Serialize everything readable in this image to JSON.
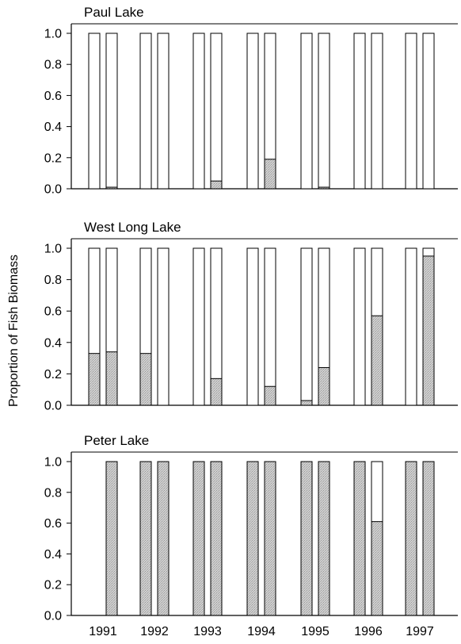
{
  "chart_data": {
    "type": "bar",
    "ylabel": "Proportion of Fish Biomass",
    "categories": [
      "1991",
      "1992",
      "1993",
      "1994",
      "1995",
      "1996",
      "1997"
    ],
    "ylim": [
      0,
      1.0
    ],
    "yticks": [
      "0.0",
      "0.2",
      "0.4",
      "0.6",
      "0.8",
      "1.0"
    ],
    "fill_colors": {
      "open": "#ffffff",
      "shaded": "#c8c8c8"
    },
    "panels": [
      {
        "title": "Paul Lake",
        "bars": [
          [
            {
              "total": 1.0,
              "shaded": 0.0
            },
            {
              "total": 1.0,
              "shaded": 0.01
            }
          ],
          [
            {
              "total": 1.0,
              "shaded": 0.0
            },
            {
              "total": 1.0,
              "shaded": 0.0
            }
          ],
          [
            {
              "total": 1.0,
              "shaded": 0.0
            },
            {
              "total": 1.0,
              "shaded": 0.05
            }
          ],
          [
            {
              "total": 1.0,
              "shaded": 0.0
            },
            {
              "total": 1.0,
              "shaded": 0.19
            }
          ],
          [
            {
              "total": 1.0,
              "shaded": 0.0
            },
            {
              "total": 1.0,
              "shaded": 0.01
            }
          ],
          [
            {
              "total": 1.0,
              "shaded": 0.0
            },
            {
              "total": 1.0,
              "shaded": 0.0
            }
          ],
          [
            {
              "total": 1.0,
              "shaded": 0.0
            },
            {
              "total": 1.0,
              "shaded": 0.0
            }
          ]
        ]
      },
      {
        "title": "West Long Lake",
        "bars": [
          [
            {
              "total": 1.0,
              "shaded": 0.33
            },
            {
              "total": 1.0,
              "shaded": 0.34
            }
          ],
          [
            {
              "total": 1.0,
              "shaded": 0.33
            },
            {
              "total": 1.0,
              "shaded": 0.0
            }
          ],
          [
            {
              "total": 1.0,
              "shaded": 0.0
            },
            {
              "total": 1.0,
              "shaded": 0.17
            }
          ],
          [
            {
              "total": 1.0,
              "shaded": 0.0
            },
            {
              "total": 1.0,
              "shaded": 0.12
            }
          ],
          [
            {
              "total": 1.0,
              "shaded": 0.03
            },
            {
              "total": 1.0,
              "shaded": 0.24
            }
          ],
          [
            {
              "total": 1.0,
              "shaded": 0.0
            },
            {
              "total": 1.0,
              "shaded": 0.57
            }
          ],
          [
            {
              "total": 1.0,
              "shaded": 0.0
            },
            {
              "total": 1.0,
              "shaded": 0.95
            }
          ]
        ]
      },
      {
        "title": "Peter Lake",
        "bars": [
          [
            null,
            {
              "total": 1.0,
              "shaded": 1.0
            }
          ],
          [
            {
              "total": 1.0,
              "shaded": 1.0
            },
            {
              "total": 1.0,
              "shaded": 1.0
            }
          ],
          [
            {
              "total": 1.0,
              "shaded": 1.0
            },
            {
              "total": 1.0,
              "shaded": 1.0
            }
          ],
          [
            {
              "total": 1.0,
              "shaded": 1.0
            },
            {
              "total": 1.0,
              "shaded": 1.0
            }
          ],
          [
            {
              "total": 1.0,
              "shaded": 1.0
            },
            {
              "total": 1.0,
              "shaded": 1.0
            }
          ],
          [
            {
              "total": 1.0,
              "shaded": 1.0
            },
            {
              "total": 1.0,
              "shaded": 0.61
            }
          ],
          [
            {
              "total": 1.0,
              "shaded": 1.0
            },
            {
              "total": 1.0,
              "shaded": 1.0
            }
          ]
        ]
      }
    ]
  }
}
